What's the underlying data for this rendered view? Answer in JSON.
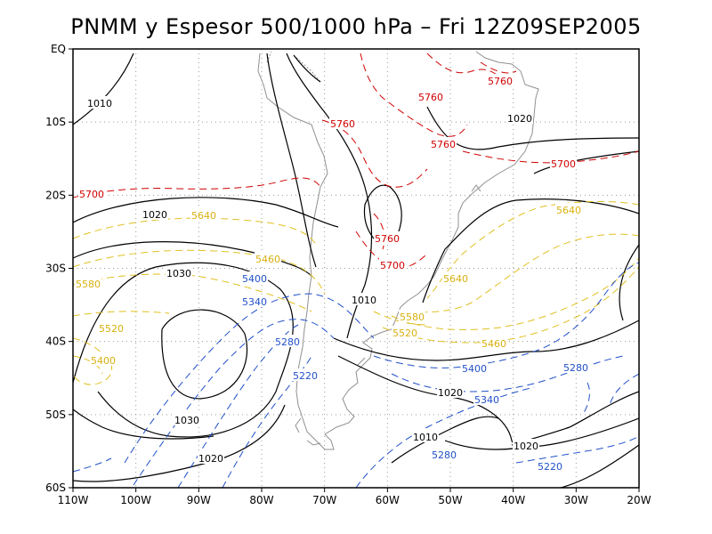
{
  "title": "PNMM y Espesor 500/1000 hPa – Fri 12Z09SEP2005",
  "x_ticks": [
    "110W",
    "100W",
    "90W",
    "80W",
    "70W",
    "60W",
    "50W",
    "40W",
    "30W",
    "20W"
  ],
  "y_ticks": [
    "EQ",
    "10S",
    "20S",
    "30S",
    "40S",
    "50S",
    "60S"
  ],
  "colors": {
    "pressure": "#000000",
    "thick_warm": "#d00000",
    "thick_mid": "#e0c020",
    "thick_cold": "#2050c8",
    "coast": "#909090"
  },
  "pressure_labels": [
    "1010",
    "1020",
    "1030",
    "1010",
    "1020",
    "1030",
    "1020",
    "1020",
    "1010",
    "1020"
  ],
  "thickness_labels": {
    "red": [
      "5760",
      "5760",
      "5760",
      "5760",
      "5760",
      "5700",
      "5700",
      "5700"
    ],
    "yellow": [
      "5640",
      "5640",
      "5460",
      "5580",
      "5640",
      "5580",
      "5520",
      "5400",
      "5520",
      "5460"
    ],
    "blue": [
      "5400",
      "5340",
      "5280",
      "5220",
      "5400",
      "5340",
      "5280",
      "5280",
      "5220"
    ]
  }
}
